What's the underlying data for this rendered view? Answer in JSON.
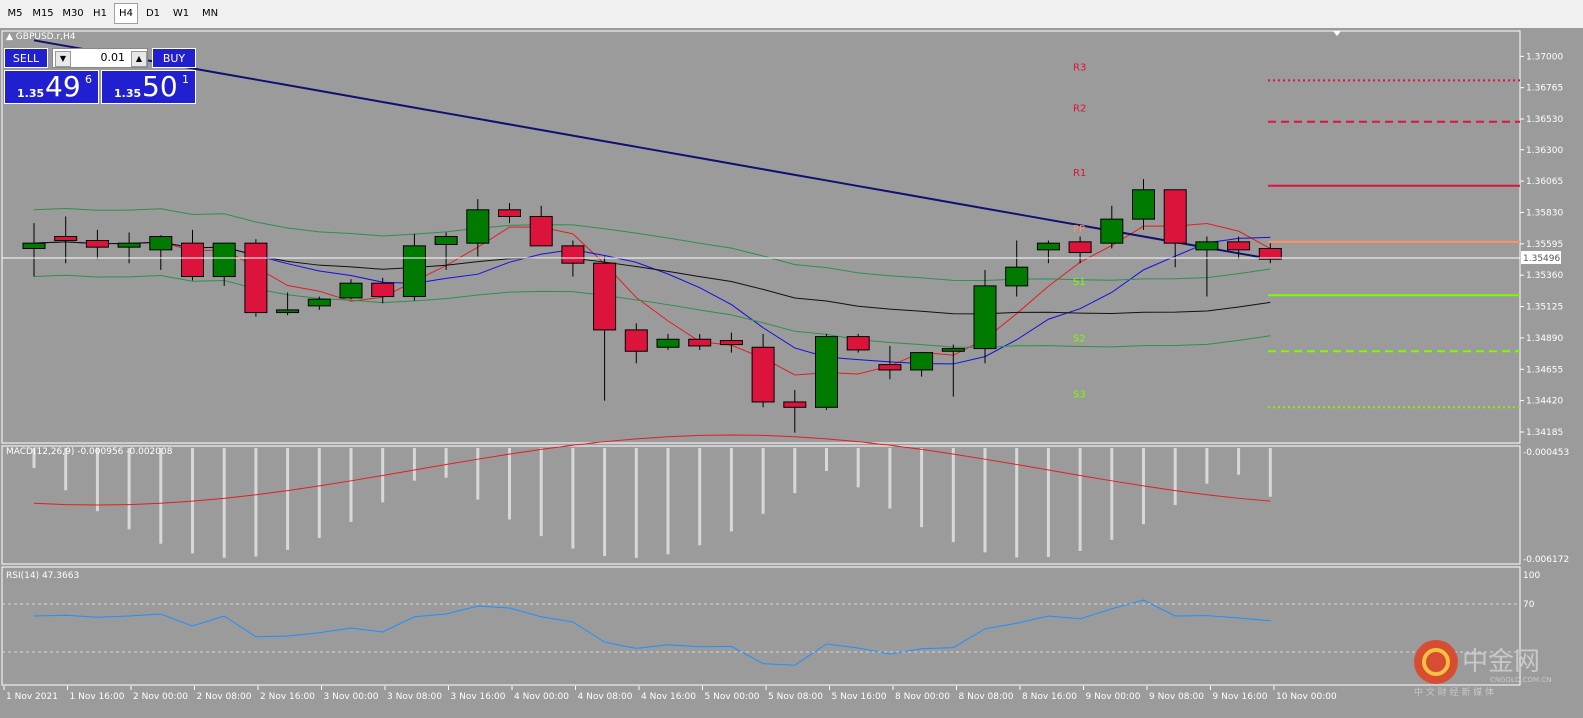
{
  "toolbar": {
    "timeframes": [
      "M5",
      "M15",
      "M30",
      "H1",
      "H4",
      "D1",
      "W1",
      "MN"
    ],
    "active": "H4"
  },
  "chart_header": {
    "symbol": "GBPUSD.r,H4"
  },
  "trade_panel": {
    "sell_label": "SELL",
    "buy_label": "BUY",
    "lot": "0.01",
    "sell_prefix": "1.35",
    "sell_big": "49",
    "sell_sup": "6",
    "buy_prefix": "1.35",
    "buy_big": "50",
    "buy_sup": "1"
  },
  "price_axis": {
    "ticks": [
      "1.37000",
      "1.36765",
      "1.36530",
      "1.36300",
      "1.36065",
      "1.35830",
      "1.35595",
      "1.35360",
      "1.35125",
      "1.34890",
      "1.34655",
      "1.34420",
      "1.34185"
    ],
    "current": "1.35496"
  },
  "pivots": {
    "r3": "R3",
    "r2": "R2",
    "r1": "R1",
    "pp": "PP",
    "s1": "S1",
    "s2": "S2",
    "s3": "S3"
  },
  "macd": {
    "label": "MACD(12,26,9) -0.000956 -0.002008",
    "top": "-0.000453",
    "bottom": "-0.006172"
  },
  "rsi": {
    "label": "RSI(14) 47.3663",
    "top": "100",
    "mid": "70",
    "value": 47.3663
  },
  "time_axis": [
    "1 Nov 2021",
    "1 Nov 16:00",
    "2 Nov 00:00",
    "2 Nov 08:00",
    "2 Nov 16:00",
    "3 Nov 00:00",
    "3 Nov 08:00",
    "3 Nov 16:00",
    "4 Nov 00:00",
    "4 Nov 08:00",
    "4 Nov 16:00",
    "5 Nov 00:00",
    "5 Nov 08:00",
    "5 Nov 16:00",
    "8 Nov 00:00",
    "8 Nov 08:00",
    "8 Nov 16:00",
    "9 Nov 00:00",
    "9 Nov 08:00",
    "9 Nov 16:00",
    "10 Nov 00:00"
  ],
  "watermark": {
    "brand": "中金网",
    "url": "CNGOLD.COM.CN",
    "tagline": "中 文 财 经 新 媒 体"
  },
  "chart_data": {
    "type": "candlestick",
    "ylim": [
      1.3414,
      1.3707
    ],
    "candles": [
      {
        "o": 1.3556,
        "h": 1.3575,
        "l": 1.3535,
        "c": 1.356
      },
      {
        "o": 1.3565,
        "h": 1.358,
        "l": 1.3545,
        "c": 1.3562
      },
      {
        "o": 1.3562,
        "h": 1.357,
        "l": 1.3548,
        "c": 1.3557
      },
      {
        "o": 1.3557,
        "h": 1.3568,
        "l": 1.3545,
        "c": 1.356
      },
      {
        "o": 1.3555,
        "h": 1.3566,
        "l": 1.354,
        "c": 1.3565
      },
      {
        "o": 1.356,
        "h": 1.357,
        "l": 1.3532,
        "c": 1.3535
      },
      {
        "o": 1.3535,
        "h": 1.356,
        "l": 1.3528,
        "c": 1.356
      },
      {
        "o": 1.356,
        "h": 1.3563,
        "l": 1.3505,
        "c": 1.3508
      },
      {
        "o": 1.3508,
        "h": 1.3523,
        "l": 1.3506,
        "c": 1.351
      },
      {
        "o": 1.3513,
        "h": 1.352,
        "l": 1.351,
        "c": 1.3518
      },
      {
        "o": 1.3519,
        "h": 1.3533,
        "l": 1.3518,
        "c": 1.353
      },
      {
        "o": 1.353,
        "h": 1.3534,
        "l": 1.3515,
        "c": 1.352
      },
      {
        "o": 1.352,
        "h": 1.3567,
        "l": 1.3517,
        "c": 1.3558
      },
      {
        "o": 1.3559,
        "h": 1.3568,
        "l": 1.354,
        "c": 1.3565
      },
      {
        "o": 1.356,
        "h": 1.3593,
        "l": 1.355,
        "c": 1.3585
      },
      {
        "o": 1.3585,
        "h": 1.359,
        "l": 1.3575,
        "c": 1.358
      },
      {
        "o": 1.358,
        "h": 1.3588,
        "l": 1.356,
        "c": 1.3558
      },
      {
        "o": 1.3558,
        "h": 1.3562,
        "l": 1.3535,
        "c": 1.3545
      },
      {
        "o": 1.3545,
        "h": 1.355,
        "l": 1.3442,
        "c": 1.3495
      },
      {
        "o": 1.3495,
        "h": 1.35,
        "l": 1.347,
        "c": 1.3479
      },
      {
        "o": 1.3482,
        "h": 1.3492,
        "l": 1.348,
        "c": 1.3488
      },
      {
        "o": 1.3488,
        "h": 1.3492,
        "l": 1.348,
        "c": 1.3483
      },
      {
        "o": 1.3487,
        "h": 1.3493,
        "l": 1.3478,
        "c": 1.3484
      },
      {
        "o": 1.3482,
        "h": 1.3492,
        "l": 1.3437,
        "c": 1.3441
      },
      {
        "o": 1.3441,
        "h": 1.345,
        "l": 1.3418,
        "c": 1.3437
      },
      {
        "o": 1.3437,
        "h": 1.3492,
        "l": 1.3435,
        "c": 1.349
      },
      {
        "o": 1.349,
        "h": 1.3492,
        "l": 1.3478,
        "c": 1.348
      },
      {
        "o": 1.3469,
        "h": 1.3483,
        "l": 1.3458,
        "c": 1.3465
      },
      {
        "o": 1.3465,
        "h": 1.3478,
        "l": 1.346,
        "c": 1.3478
      },
      {
        "o": 1.3479,
        "h": 1.3484,
        "l": 1.3445,
        "c": 1.3481
      },
      {
        "o": 1.3481,
        "h": 1.354,
        "l": 1.347,
        "c": 1.3528
      },
      {
        "o": 1.3528,
        "h": 1.3562,
        "l": 1.352,
        "c": 1.3542
      },
      {
        "o": 1.3555,
        "h": 1.3562,
        "l": 1.3545,
        "c": 1.356
      },
      {
        "o": 1.3561,
        "h": 1.3565,
        "l": 1.3545,
        "c": 1.3553
      },
      {
        "o": 1.356,
        "h": 1.3588,
        "l": 1.3556,
        "c": 1.3578
      },
      {
        "o": 1.3578,
        "h": 1.3608,
        "l": 1.357,
        "c": 1.36
      },
      {
        "o": 1.36,
        "h": 1.36,
        "l": 1.3542,
        "c": 1.356
      },
      {
        "o": 1.3555,
        "h": 1.3565,
        "l": 1.352,
        "c": 1.3561
      },
      {
        "o": 1.3561,
        "h": 1.3565,
        "l": 1.3548,
        "c": 1.3555
      },
      {
        "o": 1.3556,
        "h": 1.356,
        "l": 1.3545,
        "c": 1.3548
      }
    ],
    "pivot_levels": {
      "R3": 1.3682,
      "R2": 1.3651,
      "R1": 1.3603,
      "PP": 1.3561,
      "S1": 1.3521,
      "S2": 1.3479,
      "S3": 1.3437
    }
  }
}
